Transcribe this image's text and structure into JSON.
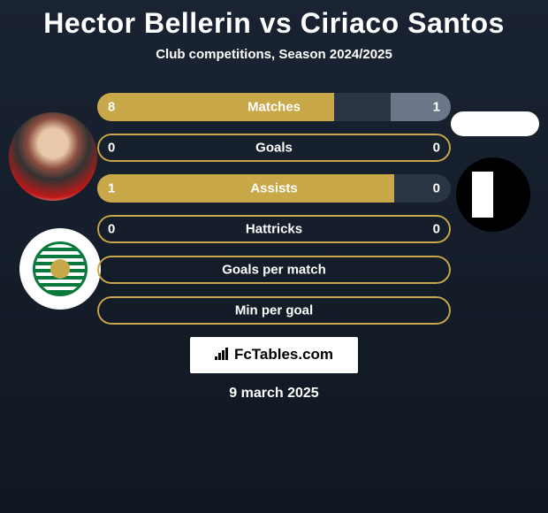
{
  "title": "Hector Bellerin vs Ciriaco Santos",
  "subtitle": "Club competitions, Season 2024/2025",
  "stats": [
    {
      "label": "Matches",
      "left_value": "8",
      "right_value": "1",
      "left_pct": 67,
      "right_pct": 17,
      "has_values": true
    },
    {
      "label": "Goals",
      "left_value": "0",
      "right_value": "0",
      "left_pct": 0,
      "right_pct": 0,
      "has_values": true,
      "outline_only": true
    },
    {
      "label": "Assists",
      "left_value": "1",
      "right_value": "0",
      "left_pct": 84,
      "right_pct": 0,
      "has_values": true
    },
    {
      "label": "Hattricks",
      "left_value": "0",
      "right_value": "0",
      "left_pct": 0,
      "right_pct": 0,
      "has_values": true,
      "outline_only": true
    },
    {
      "label": "Goals per match",
      "has_values": false,
      "outline_only": true
    },
    {
      "label": "Min per goal",
      "has_values": false,
      "outline_only": true
    }
  ],
  "brand": "FcTables.com",
  "date": "9 march 2025",
  "colors": {
    "bg_top": "#1a2332",
    "bg_bottom": "#0f1721",
    "bar_left": "#c9a849",
    "bar_right": "#6b7788",
    "bar_bg": "#2a3544",
    "text": "#ffffff"
  }
}
